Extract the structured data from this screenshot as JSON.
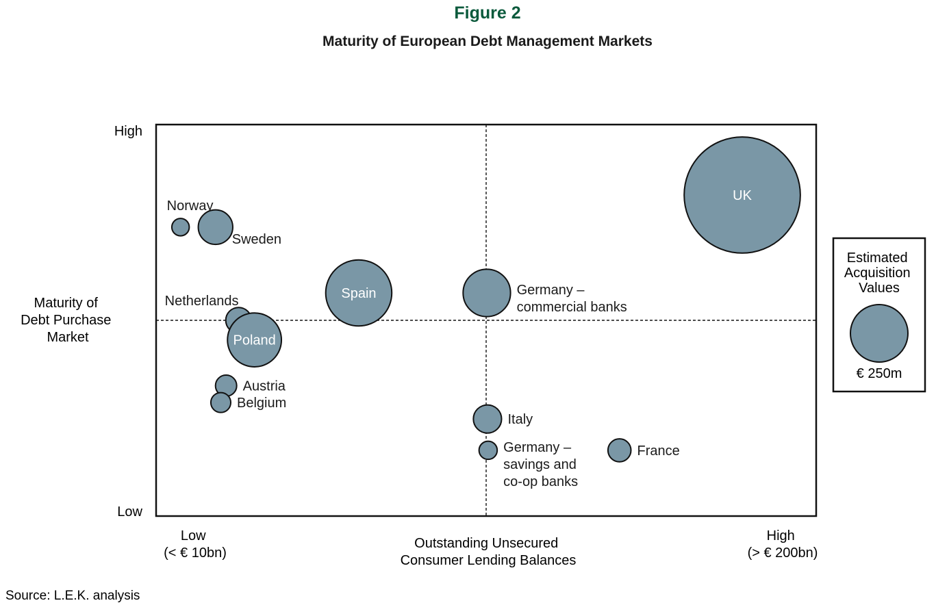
{
  "figure_label": "Figure 2",
  "source": "Source: L.E.K. analysis",
  "colors": {
    "figure_label": "#0b5a3c",
    "bubble_fill": "#7a97a6",
    "bubble_stroke": "#111111",
    "frame": "#111111",
    "text": "#1a1a1a"
  },
  "chart_data": {
    "type": "scatter",
    "title": "Maturity of European Debt Management Markets",
    "xlabel": [
      "Outstanding Unsecured",
      "Consumer Lending Balances"
    ],
    "ylabel": [
      "Maturity of",
      "Debt Purchase",
      "Market"
    ],
    "x_range": [
      0,
      100
    ],
    "y_range": [
      0,
      100
    ],
    "x_tick_low": [
      "Low",
      "(< € 10bn)"
    ],
    "x_tick_high": [
      "High",
      "(> € 200bn)"
    ],
    "y_tick_high": "High",
    "y_tick_low": "Low",
    "quadrant_divider": {
      "x": 50,
      "y": 50
    },
    "legend": {
      "title": [
        "Estimated",
        "Acquisition",
        "Values"
      ],
      "value_label": "€ 250m",
      "reference_value": 250,
      "placement": "right"
    },
    "bubbles": [
      {
        "name": "UK",
        "x": 88.8,
        "y": 82.0,
        "value": 1020,
        "label_inside": true,
        "label_lines": [
          "UK"
        ]
      },
      {
        "name": "Norway",
        "x": 3.7,
        "y": 73.8,
        "value": 23,
        "label_inside": false,
        "label_lines": [
          "Norway"
        ],
        "label_pos": "above"
      },
      {
        "name": "Sweden",
        "x": 9.0,
        "y": 73.8,
        "value": 90,
        "label_inside": false,
        "label_lines": [
          "Sweden"
        ],
        "label_pos": "below-right"
      },
      {
        "name": "Spain",
        "x": 30.7,
        "y": 57.0,
        "value": 330,
        "label_inside": true,
        "label_lines": [
          "Spain"
        ]
      },
      {
        "name": "Germany – commercial banks",
        "x": 50.1,
        "y": 57.0,
        "value": 170,
        "label_inside": false,
        "label_lines": [
          "Germany –",
          "commercial banks"
        ],
        "label_pos": "right"
      },
      {
        "name": "Netherlands",
        "x": 12.5,
        "y": 50.0,
        "value": 50,
        "label_inside": false,
        "label_lines": [
          "Netherlands"
        ],
        "label_pos": "above-left"
      },
      {
        "name": "Poland",
        "x": 14.9,
        "y": 45.0,
        "value": 220,
        "label_inside": true,
        "label_lines": [
          "Poland"
        ]
      },
      {
        "name": "Austria",
        "x": 10.6,
        "y": 33.3,
        "value": 34,
        "label_inside": false,
        "label_lines": [
          "Austria"
        ],
        "label_pos": "right"
      },
      {
        "name": "Belgium",
        "x": 9.8,
        "y": 29.0,
        "value": 30,
        "label_inside": false,
        "label_lines": [
          "Belgium"
        ],
        "label_pos": "right"
      },
      {
        "name": "Italy",
        "x": 50.2,
        "y": 24.8,
        "value": 60,
        "label_inside": false,
        "label_lines": [
          "Italy"
        ],
        "label_pos": "right"
      },
      {
        "name": "Germany – savings and co-op banks",
        "x": 50.3,
        "y": 16.8,
        "value": 25,
        "label_inside": false,
        "label_lines": [
          "Germany –",
          "savings and",
          "co-op banks"
        ],
        "label_pos": "right"
      },
      {
        "name": "France",
        "x": 70.2,
        "y": 16.8,
        "value": 40,
        "label_inside": false,
        "label_lines": [
          "France"
        ],
        "label_pos": "right"
      }
    ]
  }
}
